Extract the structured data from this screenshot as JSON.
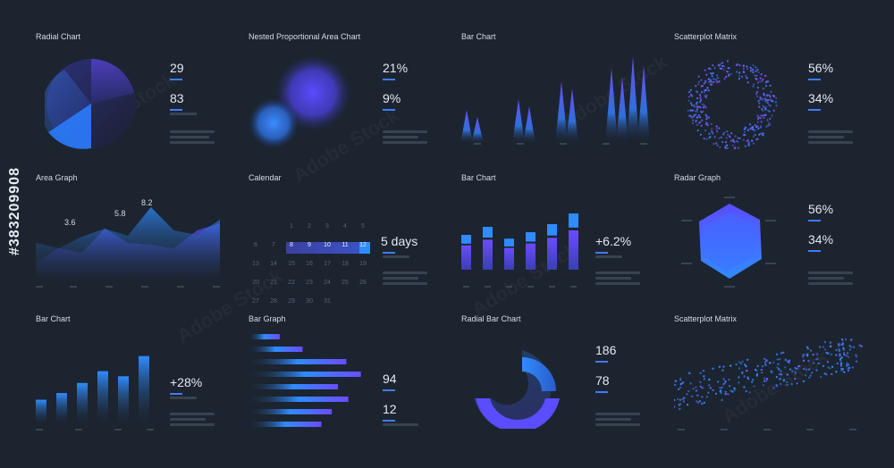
{
  "stock_id": "#383209908",
  "watermark": "Adobe Stock",
  "colors": {
    "background": "#1c2430",
    "accent_blue": "#2f8cff",
    "accent_purple": "#6a4cff",
    "placeholder": "#39424f"
  },
  "panels": {
    "radial_chart": {
      "title": "Radial Chart",
      "stat1": "29",
      "stat2": "83"
    },
    "nested_area": {
      "title": "Nested Proportional Area Chart",
      "stat1": "21%",
      "stat2": "9%"
    },
    "bar_chart_top": {
      "title": "Bar Chart"
    },
    "scatter_top": {
      "title": "Scatterplot Matrix",
      "stat1": "56%",
      "stat2": "34%"
    },
    "area_graph": {
      "title": "Area Graph",
      "label1": "3.6",
      "label2": "5.8",
      "label3": "8.2"
    },
    "calendar": {
      "title": "Calendar",
      "summary": "5 days",
      "rows": [
        [
          "",
          "",
          "1",
          "2",
          "3",
          "4",
          "5"
        ],
        [
          "6",
          "7",
          "8",
          "9",
          "10",
          "11",
          "12"
        ],
        [
          "13",
          "14",
          "15",
          "16",
          "17",
          "18",
          "19"
        ],
        [
          "20",
          "21",
          "22",
          "23",
          "24",
          "25",
          "26"
        ],
        [
          "27",
          "28",
          "29",
          "30",
          "31",
          "",
          ""
        ]
      ],
      "selected": [
        "8",
        "9",
        "10",
        "11",
        "12"
      ]
    },
    "bar_chart_mid": {
      "title": "Bar Chart",
      "stat": "+6.2%"
    },
    "radar_graph": {
      "title": "Radar Graph",
      "stat1": "56%",
      "stat2": "34%"
    },
    "bar_chart_bottom": {
      "title": "Bar Chart",
      "stat": "+28%"
    },
    "bar_graph": {
      "title": "Bar Graph",
      "stat1": "94",
      "stat2": "12"
    },
    "radial_bar": {
      "title": "Radial Bar Chart",
      "stat1": "186",
      "stat2": "78"
    },
    "scatter_bottom": {
      "title": "Scatterplot Matrix"
    }
  },
  "chart_data": [
    {
      "type": "pie",
      "title": "Radial Chart",
      "slices": [
        29,
        83
      ]
    },
    {
      "type": "bar",
      "title": "Bar Chart",
      "values": [
        38,
        30,
        50,
        42,
        70,
        62,
        85,
        75,
        98,
        88
      ]
    },
    {
      "type": "area",
      "title": "Area Graph",
      "series": [
        {
          "values": [
            4.2,
            3.6,
            4.9,
            5.8,
            5.0,
            8.2,
            5.6,
            5.1,
            6.8
          ]
        },
        {
          "values": [
            2.0,
            3.6,
            3.1,
            5.8,
            4.2,
            4.0,
            3.6,
            5.6,
            6.4
          ]
        }
      ]
    },
    {
      "type": "bar",
      "title": "Bar Chart",
      "values": [
        65,
        80,
        58,
        70,
        85,
        105,
        135
      ]
    },
    {
      "type": "bar",
      "title": "Bar Chart",
      "values": [
        28,
        36,
        48,
        62,
        56,
        80
      ]
    },
    {
      "type": "bar",
      "title": "Bar Graph",
      "values": [
        30,
        52,
        94,
        108,
        86,
        96,
        80,
        70
      ]
    }
  ]
}
